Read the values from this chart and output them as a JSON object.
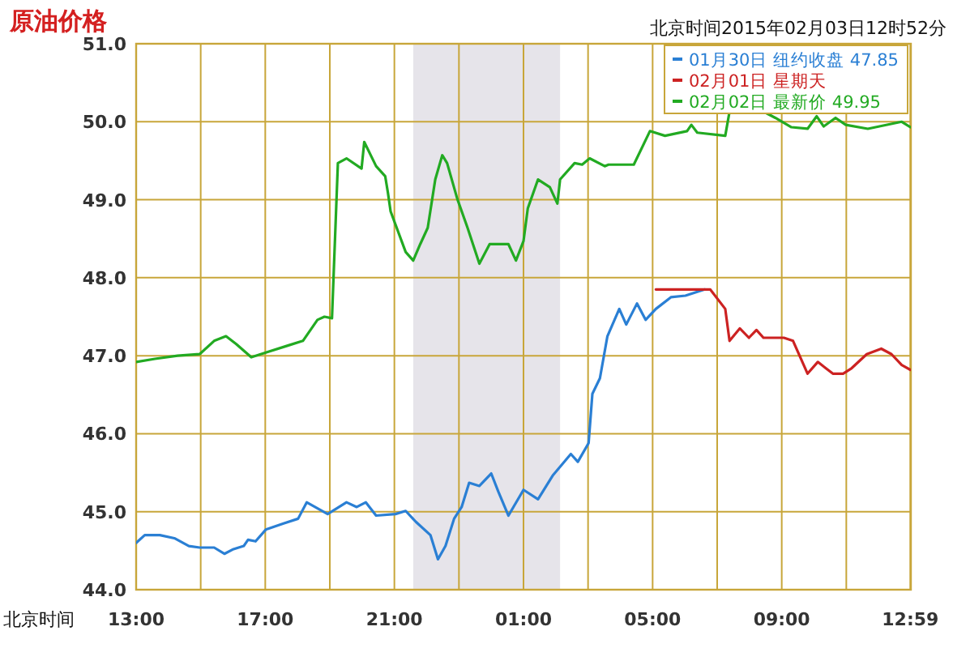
{
  "chart_data": {
    "type": "line",
    "title": "原油价格",
    "subtitle": "北京时间2015年02月03日12时52分",
    "xlabel": "北京时间",
    "xlim": [
      "2015-02-02T13:00",
      "2015-02-03T13:00"
    ],
    "ylim": [
      44,
      51
    ],
    "xticks": [
      {
        "value": "2015-02-02T13:00",
        "label": "13:00"
      },
      {
        "value": "2015-02-02T15:00",
        "label": null
      },
      {
        "value": "2015-02-02T17:00",
        "label": "17:00"
      },
      {
        "value": "2015-02-02T19:00",
        "label": null
      },
      {
        "value": "2015-02-02T21:00",
        "label": "21:00"
      },
      {
        "value": "2015-02-02T23:00",
        "label": null
      },
      {
        "value": "2015-02-03T01:00",
        "label": "01:00"
      },
      {
        "value": "2015-02-03T03:00",
        "label": null
      },
      {
        "value": "2015-02-03T05:00",
        "label": "05:00"
      },
      {
        "value": "2015-02-03T07:00",
        "label": null
      },
      {
        "value": "2015-02-03T09:00",
        "label": "09:00"
      },
      {
        "value": "2015-02-03T11:00",
        "label": null
      },
      {
        "value": "2015-02-03T12:59",
        "label": "12:59"
      }
    ],
    "yticks": [
      {
        "value": 44,
        "label": "44.0"
      },
      {
        "value": 45,
        "label": "45.0"
      },
      {
        "value": 46,
        "label": "46.0"
      },
      {
        "value": 47,
        "label": "47.0"
      },
      {
        "value": 48,
        "label": "48.0"
      },
      {
        "value": 49,
        "label": "49.0"
      },
      {
        "value": 50,
        "label": "50.0"
      },
      {
        "value": 51,
        "label": "51.0"
      }
    ],
    "grid": true,
    "legend": "top right",
    "bands": [
      {
        "axis": "x",
        "from": "2015-02-02T21:35",
        "to": "2015-02-03T02:08",
        "color": "#e6e4ea"
      }
    ],
    "series": [
      {
        "name": "01月30日  纽约收盘 47.85",
        "color": "#2a7fd4",
        "x": [
          "2015-02-02T13:00",
          "2015-02-02T13:16",
          "2015-02-02T13:44",
          "2015-02-02T14:11",
          "2015-02-02T14:38",
          "2015-02-02T14:58",
          "2015-02-02T15:25",
          "2015-02-02T15:44",
          "2015-02-02T16:01",
          "2015-02-02T16:20",
          "2015-02-02T16:28",
          "2015-02-02T16:42",
          "2015-02-02T17:01",
          "2015-02-02T17:34",
          "2015-02-02T18:01",
          "2015-02-02T18:17",
          "2015-02-02T18:56",
          "2015-02-02T19:31",
          "2015-02-02T19:50",
          "2015-02-02T20:07",
          "2015-02-02T20:26",
          "2015-02-02T21:02",
          "2015-02-02T21:21",
          "2015-02-02T21:40",
          "2015-02-02T22:07",
          "2015-02-02T22:21",
          "2015-02-02T22:35",
          "2015-02-02T22:51",
          "2015-02-02T23:05",
          "2015-02-02T23:19",
          "2015-02-02T23:38",
          "2015-02-03T00:00",
          "2015-02-03T00:13",
          "2015-02-03T00:32",
          "2015-02-03T01:00",
          "2015-02-03T01:27",
          "2015-02-03T01:55",
          "2015-02-03T02:28",
          "2015-02-03T02:41",
          "2015-02-03T03:01",
          "2015-02-03T03:08",
          "2015-02-03T03:22",
          "2015-02-03T03:36",
          "2015-02-03T03:58",
          "2015-02-03T04:11",
          "2015-02-03T04:31",
          "2015-02-03T04:47",
          "2015-02-03T05:06",
          "2015-02-03T05:34",
          "2015-02-03T06:01",
          "2015-02-03T06:37"
        ],
        "values": [
          44.6,
          44.7,
          44.7,
          44.66,
          44.56,
          44.54,
          44.54,
          44.46,
          44.52,
          44.56,
          44.64,
          44.62,
          44.77,
          44.85,
          44.91,
          45.12,
          44.97,
          45.12,
          45.06,
          45.12,
          44.95,
          44.97,
          45.01,
          44.87,
          44.7,
          44.39,
          44.56,
          44.91,
          45.06,
          45.37,
          45.33,
          45.49,
          45.26,
          44.95,
          45.28,
          45.16,
          45.47,
          45.74,
          45.64,
          45.88,
          46.51,
          46.71,
          47.25,
          47.6,
          47.4,
          47.67,
          47.46,
          47.6,
          47.75,
          47.77,
          47.85
        ]
      },
      {
        "name": "02月01日  星期天",
        "color": "#cc2222",
        "x": [
          "2015-02-03T05:06",
          "2015-02-03T06:47",
          "2015-02-03T07:15",
          "2015-02-03T07:23",
          "2015-02-03T07:42",
          "2015-02-03T07:59",
          "2015-02-03T08:13",
          "2015-02-03T08:26",
          "2015-02-03T09:04",
          "2015-02-03T09:21",
          "2015-02-03T09:48",
          "2015-02-03T10:07",
          "2015-02-03T10:35",
          "2015-02-03T10:54",
          "2015-02-03T11:10",
          "2015-02-03T11:38",
          "2015-02-03T12:05",
          "2015-02-03T12:24",
          "2015-02-03T12:43",
          "2015-02-03T12:59"
        ],
        "values": [
          47.85,
          47.85,
          47.6,
          47.19,
          47.35,
          47.23,
          47.33,
          47.23,
          47.23,
          47.19,
          46.77,
          46.92,
          46.77,
          46.77,
          46.84,
          47.02,
          47.09,
          47.02,
          46.88,
          46.82
        ]
      },
      {
        "name": "02月02日  最新价 49.95",
        "color": "#22aa22",
        "x": [
          "2015-02-02T13:00",
          "2015-02-02T13:35",
          "2015-02-02T14:17",
          "2015-02-02T14:58",
          "2015-02-02T15:25",
          "2015-02-02T15:47",
          "2015-02-02T16:06",
          "2015-02-02T16:34",
          "2015-02-02T17:01",
          "2015-02-02T17:42",
          "2015-02-02T18:10",
          "2015-02-02T18:37",
          "2015-02-02T18:50",
          "2015-02-02T19:04",
          "2015-02-02T19:15",
          "2015-02-02T19:31",
          "2015-02-02T19:59",
          "2015-02-02T20:04",
          "2015-02-02T20:26",
          "2015-02-02T20:43",
          "2015-02-02T20:48",
          "2015-02-02T20:53",
          "2015-02-02T21:21",
          "2015-02-02T21:35",
          "2015-02-02T21:48",
          "2015-02-02T22:02",
          "2015-02-02T22:16",
          "2015-02-02T22:29",
          "2015-02-02T22:38",
          "2015-02-02T22:57",
          "2015-02-02T23:16",
          "2015-02-02T23:38",
          "2015-02-02T23:57",
          "2015-02-03T00:32",
          "2015-02-03T00:46",
          "2015-02-03T01:00",
          "2015-02-03T01:08",
          "2015-02-03T01:27",
          "2015-02-03T01:49",
          "2015-02-03T02:03",
          "2015-02-03T02:08",
          "2015-02-03T02:35",
          "2015-02-03T02:49",
          "2015-02-03T03:03",
          "2015-02-03T03:31",
          "2015-02-03T03:38",
          "2015-02-03T04:25",
          "2015-02-03T04:55",
          "2015-02-03T05:23",
          "2015-02-03T06:04",
          "2015-02-03T06:12",
          "2015-02-03T06:23",
          "2015-02-03T07:15",
          "2015-02-03T07:23",
          "2015-02-03T08:26",
          "2015-02-03T08:48",
          "2015-02-03T09:18",
          "2015-02-03T09:48",
          "2015-02-03T10:05",
          "2015-02-03T10:18",
          "2015-02-03T10:40",
          "2015-02-03T10:59",
          "2015-02-03T11:40",
          "2015-02-03T12:43",
          "2015-02-03T12:59"
        ],
        "values": [
          46.92,
          46.96,
          47.0,
          47.02,
          47.19,
          47.25,
          47.15,
          46.98,
          47.04,
          47.13,
          47.19,
          47.46,
          47.5,
          47.48,
          49.47,
          49.53,
          49.4,
          49.74,
          49.43,
          49.3,
          49.09,
          48.85,
          48.33,
          48.22,
          48.43,
          48.64,
          49.26,
          49.57,
          49.47,
          49.01,
          48.64,
          48.18,
          48.43,
          48.43,
          48.22,
          48.47,
          48.89,
          49.26,
          49.16,
          48.95,
          49.26,
          49.47,
          49.45,
          49.53,
          49.43,
          49.45,
          49.45,
          49.88,
          49.82,
          49.88,
          49.96,
          49.86,
          49.82,
          50.13,
          50.13,
          50.05,
          49.93,
          49.91,
          50.07,
          49.94,
          50.05,
          49.96,
          49.91,
          50.0,
          49.93
        ]
      }
    ]
  }
}
